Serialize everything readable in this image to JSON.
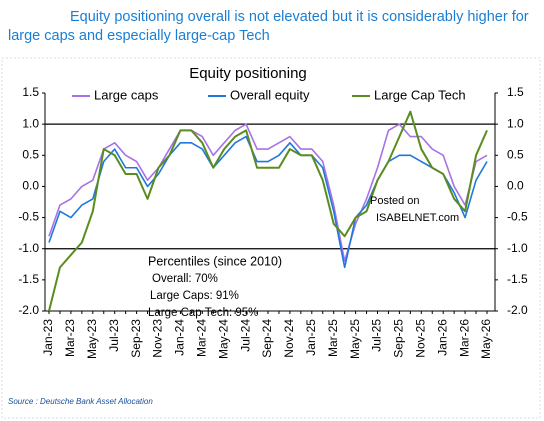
{
  "chart_data": {
    "type": "line",
    "headline": "Equity positioning overall is not elevated but it is considerably higher for large caps and especially large-cap Tech",
    "title": "Equity positioning",
    "categories": [
      "Jan-23",
      null,
      "Mar-23",
      null,
      "May-23",
      null,
      "Jul-23",
      null,
      "Sep-23",
      null,
      "Nov-23",
      null,
      "Jan-24",
      null,
      "Mar-24",
      null,
      "May-24",
      null,
      "Jul-24",
      null,
      "Sep-24",
      null,
      "Nov-24",
      null,
      "Jan-25",
      null,
      "Mar-25",
      null,
      "May-25",
      null,
      "Jul-25",
      null,
      "Sep-25",
      null,
      "Nov-25",
      null,
      "Jan-26",
      null,
      "Mar-26",
      null,
      "May-26"
    ],
    "series": [
      {
        "name": "Large caps",
        "color": "#a872e6",
        "values": [
          -0.8,
          -0.3,
          -0.2,
          0.0,
          0.1,
          0.6,
          0.7,
          0.5,
          0.4,
          0.1,
          0.3,
          0.6,
          0.9,
          0.9,
          0.8,
          0.5,
          0.7,
          0.9,
          1.0,
          0.6,
          0.6,
          0.7,
          0.8,
          0.6,
          0.6,
          0.4,
          -0.3,
          -1.2,
          -0.6,
          -0.2,
          0.3,
          0.9,
          1.0,
          0.8,
          0.8,
          0.6,
          0.5,
          0.0,
          -0.3,
          0.4,
          0.5
        ]
      },
      {
        "name": "Overall equity",
        "color": "#1f78de",
        "values": [
          -0.9,
          -0.4,
          -0.5,
          -0.3,
          -0.2,
          0.4,
          0.6,
          0.3,
          0.3,
          0.0,
          0.2,
          0.5,
          0.7,
          0.7,
          0.6,
          0.3,
          0.5,
          0.7,
          0.8,
          0.4,
          0.4,
          0.5,
          0.7,
          0.5,
          0.5,
          0.3,
          -0.4,
          -1.3,
          -0.5,
          -0.3,
          0.1,
          0.4,
          0.5,
          0.5,
          0.4,
          0.3,
          0.2,
          -0.1,
          -0.5,
          0.1,
          0.4
        ]
      },
      {
        "name": "Large Cap Tech",
        "color": "#5b8c1f",
        "values": [
          -2.0,
          -1.3,
          -1.1,
          -0.9,
          -0.4,
          0.6,
          0.5,
          0.2,
          0.2,
          -0.2,
          0.3,
          0.5,
          0.9,
          0.9,
          0.7,
          0.3,
          0.6,
          0.8,
          0.9,
          0.3,
          0.3,
          0.3,
          0.6,
          0.5,
          0.5,
          0.1,
          -0.6,
          -0.8,
          -0.5,
          -0.4,
          0.1,
          0.4,
          0.8,
          1.2,
          0.6,
          0.3,
          0.2,
          -0.2,
          -0.4,
          0.5,
          0.9
        ]
      }
    ],
    "ylim": [
      -2.0,
      1.5
    ],
    "yticks": [
      {
        "value": -2.0,
        "label": "-2.0"
      },
      -1.5,
      {
        "value": -1.0,
        "label": "-1.0"
      },
      -0.5,
      {
        "value": 0.0,
        "label": "0.0"
      },
      0.5,
      {
        "value": 1.0,
        "label": "1.0"
      },
      1.5
    ],
    "y2lim": [
      -2.0,
      1.5
    ],
    "y2ticks": [
      {
        "value": -2.0,
        "label": "-2.0"
      },
      -1.5,
      {
        "value": -1.0,
        "label": "-1.0"
      },
      -0.5,
      {
        "value": 0.0,
        "label": "0.0"
      },
      0.5,
      {
        "value": 1.0,
        "label": "1.0"
      },
      1.5
    ],
    "hlines": [
      1,
      -1
    ],
    "legend": "top",
    "annotations": [
      "Percentiles (since 2010)",
      "Overall: 70%",
      "Large Caps: 91%",
      "Large Cap Tech: 95%",
      "Posted on",
      "ISABELNET.com"
    ],
    "source": "Source : Deutsche Bank Asset Allocation"
  }
}
